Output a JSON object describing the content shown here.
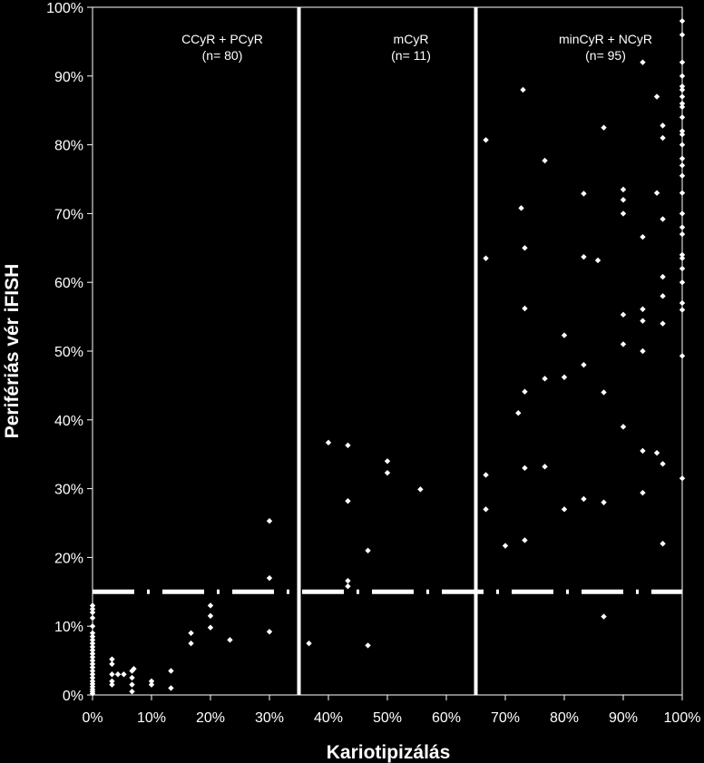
{
  "chart_data": {
    "type": "scatter",
    "xlabel": "Kariotipizálás",
    "ylabel": "Perifériás vér iFISH",
    "xlim": [
      0,
      100
    ],
    "ylim": [
      0,
      100
    ],
    "x_ticks": [
      "0%",
      "10%",
      "20%",
      "30%",
      "40%",
      "50%",
      "60%",
      "70%",
      "80%",
      "90%",
      "100%"
    ],
    "y_ticks": [
      "0%",
      "10%",
      "20%",
      "30%",
      "40%",
      "50%",
      "60%",
      "70%",
      "80%",
      "90%",
      "100%"
    ],
    "grid": false,
    "point_color": "#ffffff",
    "background": "#000000",
    "vertical_lines": [
      35,
      65
    ],
    "threshold_y": 15,
    "regions": [
      {
        "label": "CCyR + PCyR",
        "n": "(n= 80)",
        "x": 22
      },
      {
        "label": "mCyR",
        "n": "(n= 11)",
        "x": 54
      },
      {
        "label": "minCyR + NCyR",
        "n": "(n= 95)",
        "x": 87
      }
    ],
    "series": [
      {
        "points": [
          [
            0,
            0.2
          ],
          [
            0,
            0.5
          ],
          [
            0,
            0.8
          ],
          [
            0,
            1.2
          ],
          [
            0,
            1.6
          ],
          [
            0,
            2.0
          ],
          [
            0,
            2.5
          ],
          [
            0,
            3.0
          ],
          [
            0,
            3.5
          ],
          [
            0,
            4.0
          ],
          [
            0,
            4.5
          ],
          [
            0,
            5.0
          ],
          [
            0,
            5.5
          ],
          [
            0,
            6.0
          ],
          [
            0,
            6.5
          ],
          [
            0,
            7.0
          ],
          [
            0,
            7.5
          ],
          [
            0,
            8.0
          ],
          [
            0,
            8.5
          ],
          [
            0,
            9.0
          ],
          [
            0,
            10.0
          ],
          [
            0,
            11.2
          ],
          [
            0,
            12.0
          ],
          [
            0,
            12.5
          ],
          [
            0,
            13.0
          ],
          [
            3.3,
            1.5
          ],
          [
            3.3,
            2.0
          ],
          [
            3.3,
            3.0
          ],
          [
            3.3,
            4.5
          ],
          [
            3.3,
            5.2
          ],
          [
            4.3,
            3.0
          ],
          [
            5.3,
            3.0
          ],
          [
            6.7,
            0.5
          ],
          [
            6.7,
            1.5
          ],
          [
            6.7,
            2.5
          ],
          [
            6.7,
            3.5
          ],
          [
            7.0,
            3.8
          ],
          [
            10,
            1.5
          ],
          [
            10,
            2.0
          ],
          [
            13.3,
            1.0
          ],
          [
            13.3,
            3.5
          ],
          [
            16.7,
            7.5
          ],
          [
            16.7,
            9.0
          ],
          [
            20,
            9.8
          ],
          [
            20,
            11.5
          ],
          [
            20,
            13.0
          ],
          [
            23.3,
            8.0
          ],
          [
            30,
            9.2
          ],
          [
            30,
            17.0
          ],
          [
            30,
            25.3
          ],
          [
            36.7,
            7.5
          ],
          [
            40,
            36.7
          ],
          [
            43.3,
            15.8
          ],
          [
            43.3,
            16.6
          ],
          [
            43.3,
            28.2
          ],
          [
            43.3,
            36.3
          ],
          [
            46.7,
            7.2
          ],
          [
            46.7,
            21.0
          ],
          [
            50,
            32.3
          ],
          [
            50,
            34.0
          ],
          [
            55.6,
            29.9
          ],
          [
            66.7,
            27.0
          ],
          [
            66.7,
            32.0
          ],
          [
            66.7,
            63.5
          ],
          [
            66.7,
            80.7
          ],
          [
            70,
            21.7
          ],
          [
            72.2,
            41.0
          ],
          [
            72.7,
            70.8
          ],
          [
            73,
            88.0
          ],
          [
            73.3,
            22.5
          ],
          [
            73.3,
            33.0
          ],
          [
            73.3,
            44.1
          ],
          [
            73.3,
            56.2
          ],
          [
            73.3,
            65.0
          ],
          [
            76.7,
            33.2
          ],
          [
            76.7,
            46.0
          ],
          [
            76.7,
            77.7
          ],
          [
            80,
            27.0
          ],
          [
            80,
            46.2
          ],
          [
            80,
            52.3
          ],
          [
            83.3,
            28.5
          ],
          [
            83.3,
            48.0
          ],
          [
            83.3,
            63.7
          ],
          [
            83.3,
            72.9
          ],
          [
            85.7,
            63.2
          ],
          [
            86.7,
            11.4
          ],
          [
            86.7,
            28.0
          ],
          [
            86.7,
            44.0
          ],
          [
            86.7,
            82.5
          ],
          [
            90,
            39.0
          ],
          [
            90,
            51.0
          ],
          [
            90,
            55.3
          ],
          [
            90,
            70.0
          ],
          [
            90,
            72.0
          ],
          [
            90,
            73.5
          ],
          [
            93.3,
            29.4
          ],
          [
            93.3,
            35.5
          ],
          [
            93.3,
            50.0
          ],
          [
            93.3,
            54.4
          ],
          [
            93.3,
            56.1
          ],
          [
            93.3,
            66.6
          ],
          [
            93.3,
            92.0
          ],
          [
            95.7,
            35.2
          ],
          [
            95.7,
            73.0
          ],
          [
            95.7,
            87.0
          ],
          [
            96.7,
            22.0
          ],
          [
            96.7,
            33.6
          ],
          [
            96.7,
            54.0
          ],
          [
            96.7,
            58.0
          ],
          [
            96.7,
            60.8
          ],
          [
            96.7,
            69.2
          ],
          [
            96.7,
            81.0
          ],
          [
            96.7,
            82.8
          ],
          [
            100,
            31.5
          ],
          [
            100,
            49.3
          ],
          [
            100,
            56.0
          ],
          [
            100,
            57.0
          ],
          [
            100,
            60.0
          ],
          [
            100,
            62.0
          ],
          [
            100,
            63.5
          ],
          [
            100,
            64.0
          ],
          [
            100,
            67.0
          ],
          [
            100,
            68.0
          ],
          [
            100,
            70.0
          ],
          [
            100,
            73.0
          ],
          [
            100,
            75.5
          ],
          [
            100,
            77.0
          ],
          [
            100,
            78.0
          ],
          [
            100,
            80.0
          ],
          [
            100,
            81.5
          ],
          [
            100,
            82.0
          ],
          [
            100,
            84.0
          ],
          [
            100,
            85.5
          ],
          [
            100,
            86.0
          ],
          [
            100,
            87.0
          ],
          [
            100,
            88.0
          ],
          [
            100,
            88.5
          ],
          [
            100,
            90.0
          ],
          [
            100,
            92.0
          ],
          [
            100,
            96.0
          ],
          [
            100,
            98.0
          ]
        ]
      }
    ]
  }
}
